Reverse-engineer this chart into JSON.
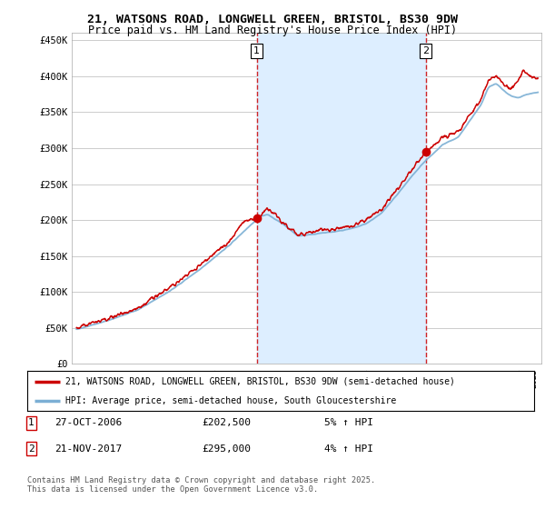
{
  "title_line1": "21, WATSONS ROAD, LONGWELL GREEN, BRISTOL, BS30 9DW",
  "title_line2": "Price paid vs. HM Land Registry's House Price Index (HPI)",
  "ylabel_ticks": [
    "£0",
    "£50K",
    "£100K",
    "£150K",
    "£200K",
    "£250K",
    "£300K",
    "£350K",
    "£400K",
    "£450K"
  ],
  "ytick_values": [
    0,
    50000,
    100000,
    150000,
    200000,
    250000,
    300000,
    350000,
    400000,
    450000
  ],
  "ylim": [
    0,
    460000
  ],
  "xlim_start": 1994.7,
  "xlim_end": 2025.5,
  "marker1_x": 2006.82,
  "marker1_y": 202500,
  "marker2_x": 2017.89,
  "marker2_y": 295000,
  "vline1_x": 2006.82,
  "vline2_x": 2017.89,
  "legend_line1": "21, WATSONS ROAD, LONGWELL GREEN, BRISTOL, BS30 9DW (semi-detached house)",
  "legend_line2": "HPI: Average price, semi-detached house, South Gloucestershire",
  "annotation1": [
    "1",
    "27-OCT-2006",
    "£202,500",
    "5% ↑ HPI"
  ],
  "annotation2": [
    "2",
    "21-NOV-2017",
    "£295,000",
    "4% ↑ HPI"
  ],
  "footer": "Contains HM Land Registry data © Crown copyright and database right 2025.\nThis data is licensed under the Open Government Licence v3.0.",
  "line_color_red": "#cc0000",
  "line_color_blue": "#7bafd4",
  "shade_color": "#ddeeff",
  "bg_color": "#ffffff",
  "grid_color": "#cccccc",
  "vline_color": "#cc0000",
  "title_fontsize": 9.5,
  "subtitle_fontsize": 8.5
}
